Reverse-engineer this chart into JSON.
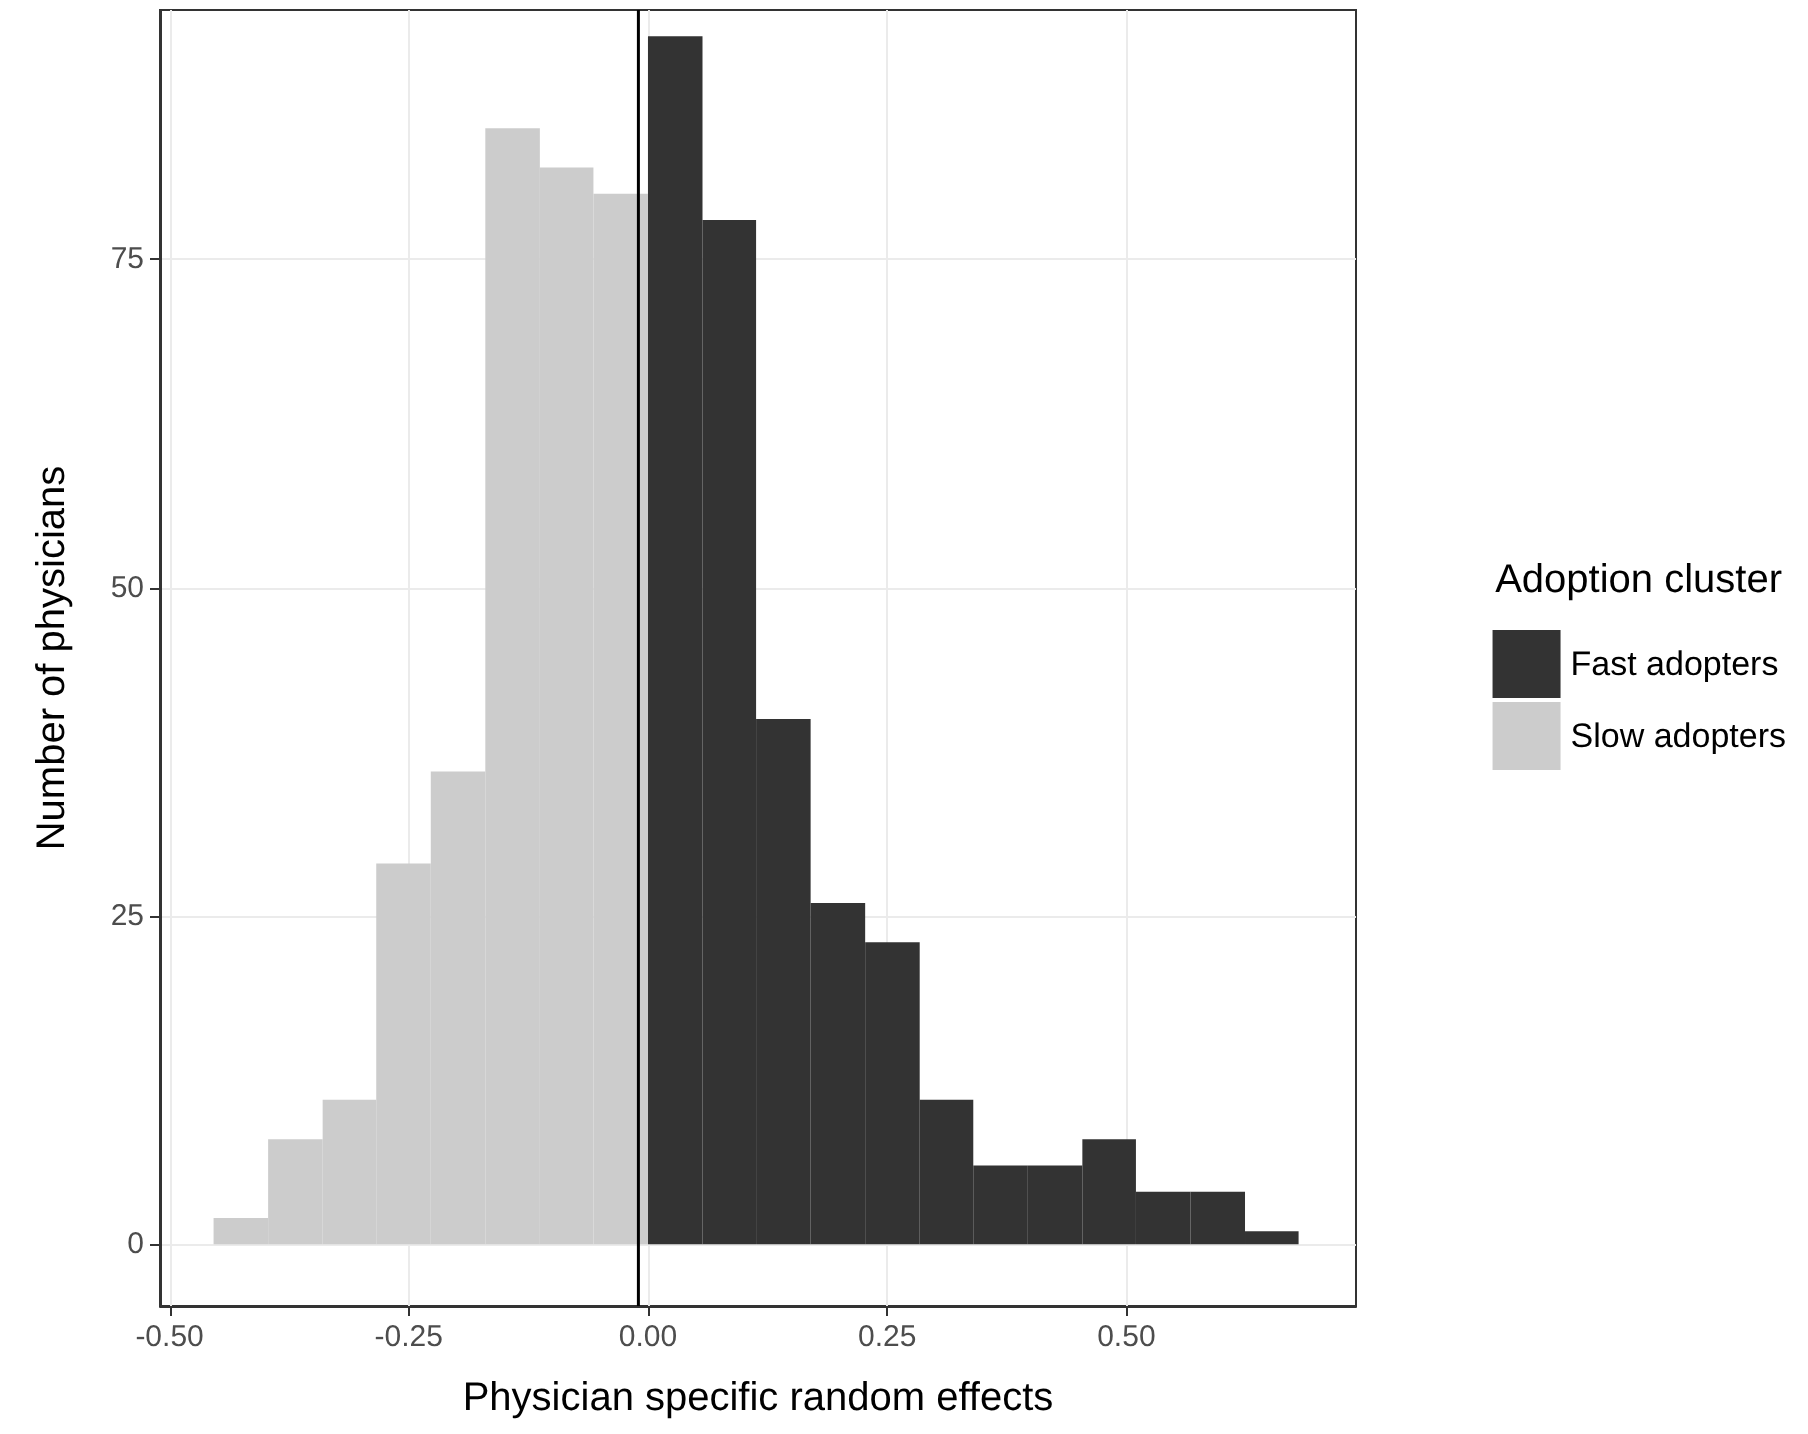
{
  "chart_data": {
    "type": "histogram",
    "xlabel": "Physician specific random effects",
    "ylabel": "Number of physicians",
    "legend_title": "Adoption cluster",
    "bins": [
      -0.454,
      -0.397,
      -0.34,
      -0.284,
      -0.227,
      -0.17,
      -0.113,
      -0.057,
      0,
      0.057,
      0.113,
      0.17,
      0.227,
      0.284,
      0.34,
      0.397,
      0.454,
      0.51,
      0.567,
      0.624,
      0.68
    ],
    "series": [
      {
        "name": "Fast adopters",
        "color": "#333333",
        "values": [
          null,
          null,
          null,
          null,
          null,
          null,
          null,
          null,
          92,
          78,
          40,
          26,
          23,
          11,
          6,
          6,
          8,
          4,
          4,
          1
        ]
      },
      {
        "name": "Slow adopters",
        "color": "#cccccc",
        "values": [
          2,
          8,
          11,
          29,
          36,
          85,
          82,
          80,
          null,
          null,
          null,
          null,
          null,
          null,
          null,
          null,
          null,
          null,
          null,
          null
        ]
      }
    ],
    "xlim": [
      -0.51,
      0.74
    ],
    "xticks": [
      {
        "value": -0.5,
        "label": "-0.50"
      },
      {
        "value": -0.25,
        "label": "-0.25"
      },
      {
        "value": 0,
        "label": "0.00"
      },
      {
        "value": 0.25,
        "label": "0.25"
      },
      {
        "value": 0.5,
        "label": "0.50"
      }
    ],
    "ylim": [
      -4.7,
      94
    ],
    "yticks": [
      0,
      25,
      50,
      75
    ],
    "ref_lines": [
      {
        "axis": "x",
        "value": -0.01,
        "color": "#000000"
      }
    ],
    "grid": true,
    "legend": "right"
  }
}
